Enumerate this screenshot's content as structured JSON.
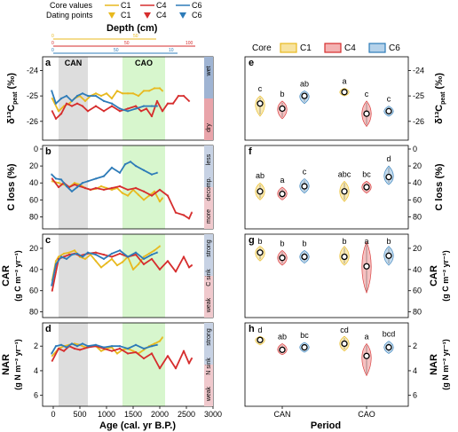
{
  "colors": {
    "C1": "#e8b91e",
    "C4": "#d62d2d",
    "C6": "#2d7bb8",
    "can_band": "#d9d9d9",
    "cao_band": "#d3f5c8",
    "wet": "#9fb4d3",
    "dry": "#e9a4aa"
  },
  "legend_top": {
    "row1_label": "Core values",
    "row2_label": "Dating points",
    "items": [
      "C1",
      "C4",
      "C6"
    ]
  },
  "depth_axis": {
    "title": "Depth (cm)",
    "c1": {
      "ticks": [
        "0",
        "50"
      ]
    },
    "c4": {
      "ticks": [
        "0",
        "50",
        "100"
      ]
    },
    "c6": {
      "ticks": [
        "0",
        "50",
        "10"
      ]
    }
  },
  "periods": {
    "CAN": "CAN",
    "CAO": "CAO"
  },
  "left_xaxis": {
    "title": "Age (cal. yr B.P.)",
    "ticks": [
      "0",
      "500",
      "1000",
      "1500",
      "2000",
      "2500",
      "3000"
    ]
  },
  "right_xaxis": {
    "title": "Period",
    "ticks": [
      "CAN",
      "CAO"
    ]
  },
  "right_legend": {
    "title": "Core",
    "items": [
      "C1",
      "C4",
      "C6"
    ]
  },
  "panels": [
    {
      "id": "a",
      "ylabel": "δ¹³C",
      "ylabel_sub": "peat",
      "ylabel_unit": " (‰)",
      "yticks": [
        "-26",
        "-25",
        "-24"
      ],
      "side_top": "wet",
      "side_bottom": "dry"
    },
    {
      "id": "b",
      "ylabel": "C loss (%)",
      "yticks": [
        "0",
        "20",
        "40",
        "60",
        "80"
      ],
      "side_top": "less",
      "side_mid": "decomp.",
      "side_bottom": "more"
    },
    {
      "id": "c",
      "ylabel": "CAR",
      "ylabel2": "(g C m⁻² yr⁻¹)",
      "yticks": [
        "80",
        "60",
        "40",
        "20"
      ],
      "side_top": "strong",
      "side_mid": "C sink",
      "side_bottom": "weak"
    },
    {
      "id": "d",
      "ylabel": "NAR",
      "ylabel2": "(g N m⁻² yr⁻¹)",
      "yticks": [
        "6",
        "4",
        "2"
      ],
      "side_top": "strong",
      "side_mid": "N sink",
      "side_bottom": "weak"
    },
    {
      "id": "e",
      "ylabel": "δ¹³C",
      "ylabel_sub": "peat",
      "ylabel_unit": " (‰)",
      "yticks": [
        "-26",
        "-25",
        "-24"
      ],
      "letters": [
        "c",
        "b",
        "ab",
        "a",
        "c",
        "c"
      ]
    },
    {
      "id": "f",
      "ylabel": "C loss (%)",
      "yticks": [
        "0",
        "20",
        "40",
        "60",
        "80"
      ],
      "letters": [
        "ab",
        "a",
        "c",
        "abc",
        "bc",
        "d"
      ]
    },
    {
      "id": "g",
      "ylabel": "CAR",
      "ylabel2": "(g C m⁻² yr⁻¹)",
      "yticks": [
        "80",
        "60",
        "40",
        "20"
      ],
      "letters": [
        "b",
        "b",
        "b",
        "b",
        "a",
        "b"
      ]
    },
    {
      "id": "h",
      "ylabel": "NAR",
      "ylabel2": "(g N m⁻² yr⁻¹)",
      "yticks": [
        "6",
        "4",
        "2"
      ],
      "letters": [
        "d",
        "ab",
        "bc",
        "cd",
        "a",
        "bcd"
      ]
    }
  ],
  "chart_data": {
    "type": "line",
    "x_label": "Age (cal. yr B.P.)",
    "xlim": [
      -200,
      3000
    ],
    "period_bands": [
      {
        "name": "CAN",
        "from": 100,
        "to": 650
      },
      {
        "name": "CAO",
        "from": 1300,
        "to": 2100
      }
    ],
    "panels": [
      {
        "id": "a",
        "ylim": [
          -23.6,
          -26.6
        ],
        "reversed": true,
        "series": [
          {
            "name": "C1",
            "x": [
              -20,
              100,
              200,
              300,
              400,
              500,
              600,
              700,
              800,
              900,
              1000,
              1100,
              1200,
              1300,
              1400,
              1500,
              1600,
              1700,
              1800,
              1900,
              2000,
              2050
            ],
            "y": [
              -25.1,
              -25.6,
              -25.4,
              -25.3,
              -25.1,
              -25.0,
              -25.2,
              -25.0,
              -24.9,
              -25.0,
              -24.9,
              -25.1,
              -24.8,
              -24.9,
              -24.9,
              -24.9,
              -25.0,
              -24.8,
              -24.8,
              -24.7,
              -24.7,
              -24.8
            ]
          },
          {
            "name": "C4",
            "x": [
              -20,
              50,
              150,
              250,
              350,
              450,
              550,
              650,
              800,
              950,
              1100,
              1250,
              1400,
              1550,
              1650,
              1750,
              1850,
              1950,
              2050,
              2150,
              2250,
              2350,
              2450,
              2550
            ],
            "y": [
              -25.6,
              -25.9,
              -25.7,
              -25.3,
              -25.4,
              -25.3,
              -25.4,
              -25.6,
              -25.4,
              -25.6,
              -25.4,
              -25.6,
              -25.5,
              -25.4,
              -25.6,
              -25.5,
              -25.8,
              -25.2,
              -25.6,
              -25.3,
              -25.3,
              -25.0,
              -25.0,
              -25.2
            ]
          },
          {
            "name": "C6",
            "x": [
              -30,
              50,
              150,
              250,
              350,
              450,
              550,
              650,
              800,
              950,
              1100,
              1250,
              1400,
              1550,
              1700,
              1850,
              1950
            ],
            "y": [
              -24.8,
              -25.3,
              -25.1,
              -25.0,
              -25.2,
              -25.0,
              -24.9,
              -25.0,
              -25.0,
              -25.2,
              -25.3,
              -25.5,
              -25.6,
              -25.5,
              -25.4,
              -25.4,
              -25.4
            ]
          }
        ]
      },
      {
        "id": "b",
        "ylim": [
          0,
          90
        ],
        "reversed": true,
        "series": [
          {
            "name": "C1",
            "x": [
              -20,
              100,
              200,
              300,
              400,
              500,
              600,
              700,
              800,
              900,
              1000,
              1100,
              1200,
              1300,
              1400,
              1500,
              1600,
              1700,
              1800,
              1900,
              2000,
              2050
            ],
            "y": [
              38,
              40,
              42,
              45,
              40,
              42,
              46,
              48,
              47,
              44,
              46,
              48,
              46,
              52,
              55,
              48,
              54,
              60,
              55,
              50,
              62,
              58
            ]
          },
          {
            "name": "C4",
            "x": [
              -20,
              100,
              200,
              300,
              400,
              500,
              600,
              700,
              800,
              950,
              1100,
              1250,
              1400,
              1550,
              1700,
              1850,
              2000,
              2150,
              2300,
              2450,
              2550,
              2600
            ],
            "y": [
              35,
              45,
              40,
              45,
              42,
              44,
              46,
              48,
              46,
              48,
              46,
              44,
              48,
              46,
              50,
              55,
              48,
              55,
              75,
              78,
              82,
              75
            ]
          },
          {
            "name": "C6",
            "x": [
              -30,
              50,
              150,
              250,
              350,
              450,
              550,
              650,
              800,
              950,
              1100,
              1250,
              1350,
              1450,
              1550,
              1700,
              1850,
              1950
            ],
            "y": [
              30,
              35,
              36,
              44,
              50,
              45,
              40,
              38,
              35,
              32,
              22,
              28,
              18,
              15,
              20,
              25,
              30,
              28
            ]
          }
        ]
      },
      {
        "id": "c",
        "ylim": [
          10,
          82
        ],
        "reversed": false,
        "series": [
          {
            "name": "C1",
            "x": [
              -20,
              50,
              100,
              200,
              300,
              400,
              500,
              600,
              700,
              800,
              900,
              1000,
              1100,
              1200,
              1300,
              1400,
              1500,
              1600,
              1700,
              1800,
              1900,
              2000
            ],
            "y": [
              50,
              32,
              28,
              25,
              24,
              22,
              28,
              30,
              26,
              32,
              38,
              34,
              30,
              36,
              33,
              28,
              40,
              35,
              28,
              25,
              22,
              18
            ]
          },
          {
            "name": "C4",
            "x": [
              -20,
              100,
              200,
              300,
              400,
              500,
              650,
              800,
              950,
              1100,
              1250,
              1400,
              1550,
              1700,
              1850,
              2000,
              2150,
              2300,
              2450,
              2550,
              2600
            ],
            "y": [
              60,
              30,
              28,
              26,
              25,
              27,
              25,
              24,
              26,
              28,
              25,
              28,
              26,
              35,
              30,
              40,
              32,
              42,
              28,
              38,
              36
            ]
          },
          {
            "name": "C6",
            "x": [
              -30,
              50,
              150,
              250,
              350,
              450,
              550,
              650,
              800,
              950,
              1100,
              1250,
              1400,
              1550,
              1700,
              1850,
              1950
            ],
            "y": [
              55,
              35,
              28,
              30,
              26,
              25,
              28,
              24,
              26,
              30,
              25,
              22,
              28,
              24,
              30,
              26,
              24
            ]
          }
        ]
      },
      {
        "id": "d",
        "ylim": [
          0.4,
          6.6
        ],
        "reversed": false,
        "series": [
          {
            "name": "C1",
            "x": [
              -20,
              100,
              200,
              300,
              400,
              500,
              600,
              700,
              800,
              900,
              1000,
              1100,
              1200,
              1300,
              1400,
              1500,
              1600,
              1700,
              1800,
              1900,
              2000,
              2050
            ],
            "y": [
              2.8,
              2.2,
              2.0,
              1.9,
              1.8,
              1.9,
              2.1,
              2.0,
              2.0,
              2.4,
              2.2,
              2.1,
              2.6,
              2.3,
              2.2,
              2.4,
              2.6,
              2.3,
              2.0,
              1.8,
              1.6,
              1.3
            ]
          },
          {
            "name": "C4",
            "x": [
              -20,
              100,
              200,
              300,
              400,
              500,
              650,
              800,
              950,
              1100,
              1250,
              1400,
              1550,
              1700,
              1850,
              2000,
              2150,
              2300,
              2450,
              2550,
              2600
            ],
            "y": [
              3.2,
              2.2,
              2.4,
              2.0,
              2.2,
              2.3,
              2.1,
              2.0,
              2.2,
              2.4,
              2.2,
              2.6,
              2.5,
              3.0,
              2.6,
              3.8,
              2.8,
              3.8,
              2.4,
              3.4,
              3.0
            ]
          },
          {
            "name": "C6",
            "x": [
              -30,
              50,
              150,
              250,
              350,
              450,
              550,
              650,
              800,
              950,
              1100,
              1250,
              1400,
              1550,
              1700,
              1850,
              1950
            ],
            "y": [
              2.6,
              2.0,
              1.9,
              2.1,
              1.8,
              2.0,
              1.8,
              2.0,
              1.9,
              2.1,
              2.0,
              2.0,
              2.2,
              1.9,
              2.2,
              2.0,
              1.9
            ]
          }
        ]
      }
    ],
    "violins": [
      {
        "id": "e",
        "ylim": [
          -23.6,
          -26.6
        ],
        "reversed": true,
        "groups": [
          {
            "period": "CAN",
            "core": "C1",
            "median": -25.3,
            "lo": -25.8,
            "hi": -25.0
          },
          {
            "period": "CAN",
            "core": "C4",
            "median": -25.5,
            "lo": -25.9,
            "hi": -25.2
          },
          {
            "period": "CAN",
            "core": "C6",
            "median": -25.0,
            "lo": -25.3,
            "hi": -24.8
          },
          {
            "period": "CAO",
            "core": "C1",
            "median": -24.85,
            "lo": -25.0,
            "hi": -24.7
          },
          {
            "period": "CAO",
            "core": "C4",
            "median": -25.7,
            "lo": -26.2,
            "hi": -25.2
          },
          {
            "period": "CAO",
            "core": "C6",
            "median": -25.6,
            "lo": -25.8,
            "hi": -25.4
          }
        ]
      },
      {
        "id": "f",
        "ylim": [
          0,
          90
        ],
        "reversed": true,
        "groups": [
          {
            "period": "CAN",
            "core": "C1",
            "median": 50,
            "lo": 40,
            "hi": 60
          },
          {
            "period": "CAN",
            "core": "C4",
            "median": 53,
            "lo": 45,
            "hi": 60
          },
          {
            "period": "CAN",
            "core": "C6",
            "median": 44,
            "lo": 35,
            "hi": 52
          },
          {
            "period": "CAO",
            "core": "C1",
            "median": 50,
            "lo": 38,
            "hi": 62
          },
          {
            "period": "CAO",
            "core": "C4",
            "median": 45,
            "lo": 38,
            "hi": 52
          },
          {
            "period": "CAO",
            "core": "C6",
            "median": 33,
            "lo": 20,
            "hi": 42
          }
        ]
      },
      {
        "id": "g",
        "ylim": [
          10,
          82
        ],
        "reversed": false,
        "groups": [
          {
            "period": "CAN",
            "core": "C1",
            "median": 24,
            "lo": 18,
            "hi": 32
          },
          {
            "period": "CAN",
            "core": "C4",
            "median": 29,
            "lo": 22,
            "hi": 36
          },
          {
            "period": "CAN",
            "core": "C6",
            "median": 28,
            "lo": 22,
            "hi": 34
          },
          {
            "period": "CAO",
            "core": "C1",
            "median": 28,
            "lo": 18,
            "hi": 36
          },
          {
            "period": "CAO",
            "core": "C4",
            "median": 37,
            "lo": 14,
            "hi": 62
          },
          {
            "period": "CAO",
            "core": "C6",
            "median": 27,
            "lo": 18,
            "hi": 36
          }
        ]
      },
      {
        "id": "h",
        "ylim": [
          0.4,
          6.6
        ],
        "reversed": false,
        "groups": [
          {
            "period": "CAN",
            "core": "C1",
            "median": 1.5,
            "lo": 1.2,
            "hi": 1.9
          },
          {
            "period": "CAN",
            "core": "C4",
            "median": 2.3,
            "lo": 1.8,
            "hi": 2.7
          },
          {
            "period": "CAN",
            "core": "C6",
            "median": 2.1,
            "lo": 1.7,
            "hi": 2.5
          },
          {
            "period": "CAO",
            "core": "C1",
            "median": 1.8,
            "lo": 1.2,
            "hi": 2.4
          },
          {
            "period": "CAO",
            "core": "C4",
            "median": 2.8,
            "lo": 1.8,
            "hi": 4.4
          },
          {
            "period": "CAO",
            "core": "C6",
            "median": 2.1,
            "lo": 1.6,
            "hi": 2.6
          }
        ]
      }
    ]
  }
}
